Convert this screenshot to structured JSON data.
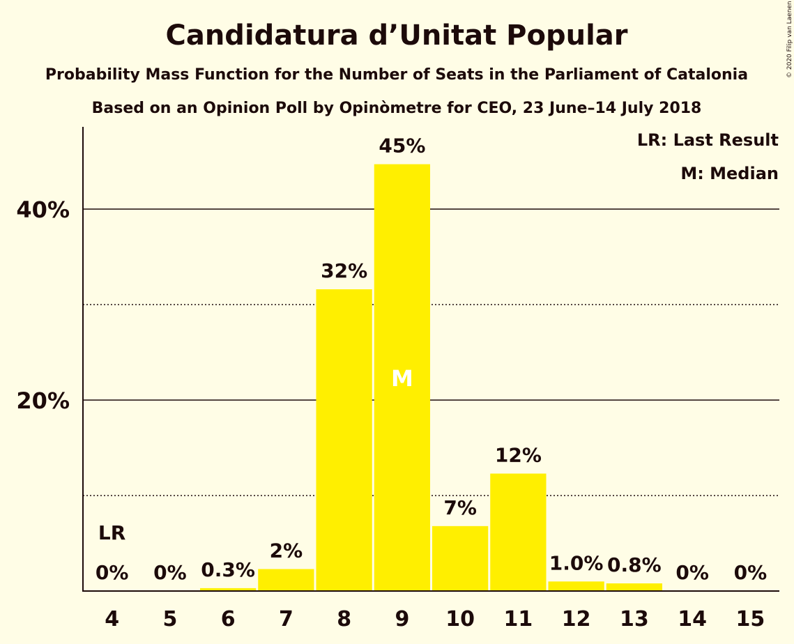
{
  "chart_data": {
    "type": "bar",
    "title": "Candidatura d’Unitat Popular",
    "subtitle_1": "Probability Mass Function for the Number of Seats in the Parliament of Catalonia",
    "subtitle_2": "Based on an Opinion Poll by Opinòmetre for CEO, 23 June–14 July 2018",
    "copyright": "© 2020 Filip van Laenen",
    "categories": [
      "4",
      "5",
      "6",
      "7",
      "8",
      "9",
      "10",
      "11",
      "12",
      "13",
      "14",
      "15"
    ],
    "values": [
      0,
      0,
      0.3,
      2.3,
      31.6,
      44.7,
      6.8,
      12.3,
      1.0,
      0.8,
      0,
      0
    ],
    "value_labels": [
      "0%",
      "0%",
      "0.3%",
      "2%",
      "32%",
      "45%",
      "7%",
      "12%",
      "1.0%",
      "0.8%",
      "0%",
      "0%"
    ],
    "ylim": [
      0,
      48
    ],
    "major_gridlines": [
      20,
      40
    ],
    "minor_gridlines": [
      10,
      30
    ],
    "ytick_labels": [
      "20%",
      "40%"
    ],
    "bar_color": "#ffef00",
    "last_result_marker": {
      "category": "4",
      "label": "LR"
    },
    "median_marker": {
      "category": "9",
      "label": "M"
    },
    "legend": [
      "LR: Last Result",
      "M: Median"
    ],
    "legend_position": "top-right"
  }
}
